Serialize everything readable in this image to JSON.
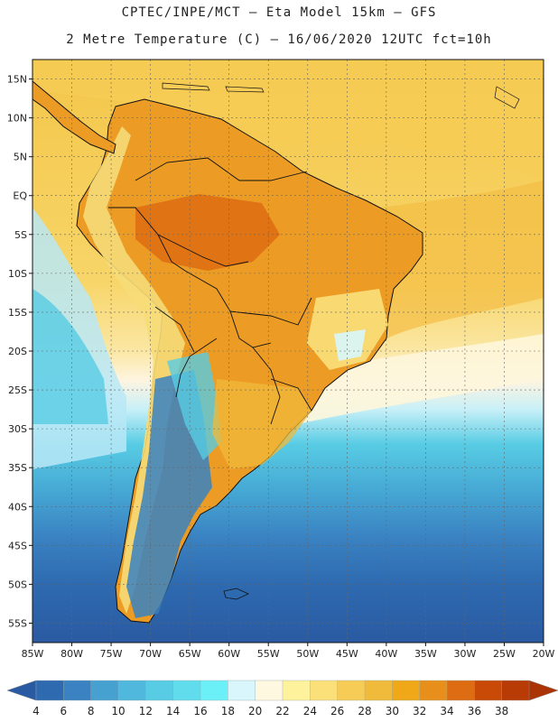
{
  "header": {
    "line1": "CPTEC/INPE/MCT —  Eta Model 15km — GFS",
    "line2": "2 Metre Temperature (C) — 16/06/2020 12UTC fct=10h"
  },
  "map": {
    "lat_labels": [
      "15N",
      "10N",
      "5N",
      "EQ",
      "5S",
      "10S",
      "15S",
      "20S",
      "25S",
      "30S",
      "35S",
      "40S",
      "45S",
      "50S",
      "55S"
    ],
    "lon_labels": [
      "85W",
      "80W",
      "75W",
      "70W",
      "65W",
      "60W",
      "55W",
      "50W",
      "45W",
      "40W",
      "35W",
      "30W",
      "25W",
      "20W"
    ],
    "lat_range": [
      17.5,
      -57.5
    ],
    "lon_range": [
      -85,
      -20
    ],
    "variable": "2 Metre Temperature",
    "units": "C"
  },
  "colorbar": {
    "ticks": [
      "4",
      "6",
      "8",
      "10",
      "12",
      "14",
      "16",
      "18",
      "20",
      "22",
      "24",
      "26",
      "28",
      "30",
      "32",
      "34",
      "36",
      "38"
    ],
    "colors": [
      "#2e6ab0",
      "#3a82c2",
      "#46a0d0",
      "#50b8dc",
      "#58cce4",
      "#60dcec",
      "#6cf0f8",
      "#d8f6fc",
      "#fef8e0",
      "#fef29c",
      "#fbe07a",
      "#f6cc56",
      "#f0ba3a",
      "#f0a818",
      "#e88e1a",
      "#de6c12",
      "#c84a06",
      "#b83a04"
    ],
    "under_color": "#2a5aa2",
    "over_color": "#aa3404"
  }
}
